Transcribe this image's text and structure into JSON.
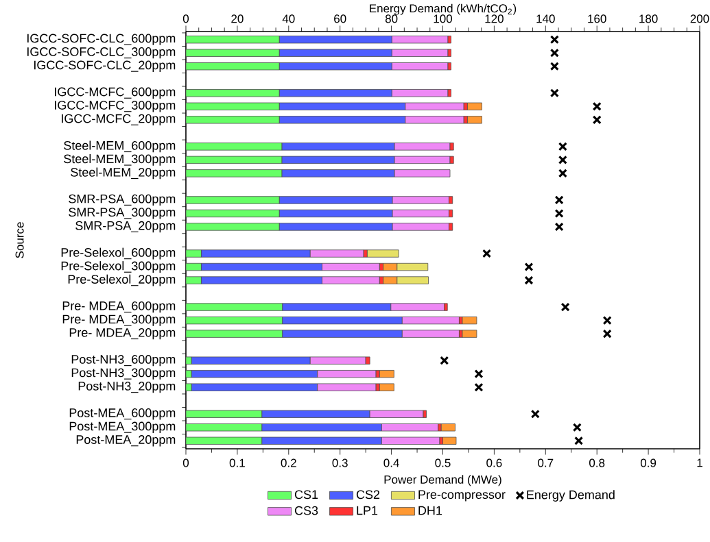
{
  "chart_data": {
    "type": "bar",
    "orientation": "horizontal",
    "stacked": true,
    "x2label": "Energy Demand (kWh/tCO$_{2}$)",
    "xlabel": "Power Demand (MWe)",
    "ylabel": "Source",
    "categories": [
      "IGCC-SOFC-CLC_600ppm",
      "IGCC-SOFC-CLC_300ppm",
      "IGCC-SOFC-CLC_20ppm",
      null,
      "IGCC-MCFC_600ppm",
      "IGCC-MCFC_300ppm",
      "IGCC-MCFC_20ppm",
      null,
      "Steel-MEM_600ppm",
      "Steel-MEM_300ppm",
      "Steel-MEM_20ppm",
      null,
      "SMR-PSA_600ppm",
      "SMR-PSA_300ppm",
      "SMR-PSA_20ppm",
      null,
      "Pre-Selexol_600ppm",
      "Pre-Selexol_300ppm",
      "Pre-Selexol_20ppm",
      null,
      "Pre- MDEA_600ppm",
      "Pre- MDEA_300ppm",
      "Pre- MDEA_20ppm",
      null,
      "Post-NH3_600ppm",
      "Post-NH3_300ppm",
      "Post-NH3_20ppm",
      null,
      "Post-MEA_600ppm",
      "Post-MEA_300ppm",
      "Post-MEA_20ppm"
    ],
    "series": [
      {
        "name": "CS1",
        "color": "#66ff66",
        "values": [
          0.182,
          0.182,
          0.182,
          null,
          0.182,
          0.182,
          0.182,
          null,
          0.187,
          0.187,
          0.187,
          null,
          0.182,
          0.182,
          0.182,
          null,
          0.03,
          0.03,
          0.03,
          null,
          0.188,
          0.188,
          0.188,
          null,
          0.011,
          0.011,
          0.011,
          null,
          0.148,
          0.148,
          0.148
        ]
      },
      {
        "name": "CS2",
        "color": "#4d5eff",
        "values": [
          0.219,
          0.219,
          0.219,
          null,
          0.219,
          0.245,
          0.245,
          null,
          0.219,
          0.219,
          0.219,
          null,
          0.22,
          0.22,
          0.22,
          null,
          0.212,
          0.235,
          0.235,
          null,
          0.211,
          0.233,
          0.233,
          null,
          0.231,
          0.245,
          0.245,
          null,
          0.21,
          0.233,
          0.233
        ]
      },
      {
        "name": "CS3",
        "color": "#ee88f5",
        "values": [
          0.109,
          0.109,
          0.109,
          null,
          0.109,
          0.114,
          0.114,
          null,
          0.108,
          0.108,
          0.108,
          null,
          0.11,
          0.11,
          0.11,
          null,
          0.104,
          0.112,
          0.112,
          null,
          0.104,
          0.111,
          0.111,
          null,
          0.108,
          0.114,
          0.114,
          null,
          0.104,
          0.11,
          0.113
        ]
      },
      {
        "name": "LP1",
        "color": "#ff3333",
        "values": [
          0.006,
          0.006,
          0.006,
          null,
          0.006,
          0.007,
          0.007,
          null,
          0.007,
          0.007,
          null,
          null,
          0.007,
          0.007,
          0.007,
          null,
          0.007,
          0.007,
          0.007,
          null,
          0.006,
          0.006,
          0.006,
          null,
          0.008,
          0.007,
          0.007,
          null,
          0.006,
          0.006,
          0.006
        ]
      },
      {
        "name": "DH1",
        "color": "#ff9933",
        "values": [
          null,
          null,
          null,
          null,
          null,
          0.028,
          0.028,
          null,
          null,
          null,
          null,
          null,
          null,
          null,
          null,
          null,
          null,
          0.027,
          0.027,
          null,
          null,
          0.028,
          0.028,
          null,
          null,
          0.028,
          0.028,
          null,
          null,
          0.027,
          0.026
        ]
      },
      {
        "name": "Pre-compressor",
        "color": "#e6e066",
        "values": [
          null,
          null,
          null,
          null,
          null,
          null,
          null,
          null,
          null,
          null,
          null,
          null,
          null,
          null,
          null,
          null,
          0.061,
          0.06,
          0.061,
          null,
          null,
          null,
          null,
          null,
          null,
          null,
          null,
          null,
          null,
          null,
          null
        ]
      },
      {
        "name": "Energy Demand",
        "type": "scatter",
        "axis": "x2",
        "marker": "cross",
        "color": "#000000",
        "values": [
          143.5,
          143.5,
          143.5,
          null,
          143.5,
          160,
          160,
          null,
          146.7,
          146.7,
          146.7,
          null,
          145.3,
          145.3,
          145.3,
          null,
          117.1,
          133.5,
          133.5,
          null,
          147.7,
          164,
          164,
          null,
          100.6,
          114,
          114,
          null,
          136,
          152.3,
          152.9
        ]
      }
    ],
    "xlim": [
      0,
      1
    ],
    "xticks": [
      0,
      0.1,
      0.2,
      0.3,
      0.4,
      0.5,
      0.6,
      0.7,
      0.8,
      0.9,
      1
    ],
    "x2lim": [
      0,
      200
    ],
    "x2ticks": [
      0,
      20,
      40,
      60,
      80,
      100,
      120,
      140,
      160,
      180,
      200
    ],
    "legend": "bottom"
  }
}
